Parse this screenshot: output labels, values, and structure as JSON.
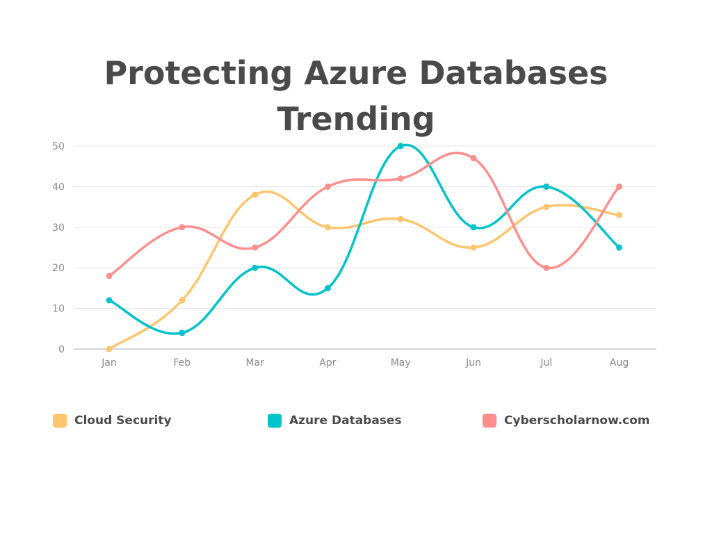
{
  "chart_data": {
    "type": "line",
    "title": "Protecting Azure Databases Trending",
    "title_lines": [
      "Protecting Azure Databases",
      "Trending"
    ],
    "categories": [
      "Jan",
      "Feb",
      "Mar",
      "Apr",
      "May",
      "Jun",
      "Jul",
      "Aug"
    ],
    "ylim": [
      0,
      50
    ],
    "yticks": [
      0,
      10,
      20,
      30,
      40,
      50
    ],
    "grid": true,
    "legend_position": "bottom",
    "series": [
      {
        "name": "Cloud Security",
        "color": "#ffc56e",
        "values": [
          0,
          12,
          38,
          30,
          32,
          25,
          35,
          33
        ]
      },
      {
        "name": "Azure Databases",
        "color": "#00c2c9",
        "values": [
          12,
          4,
          20,
          15,
          50,
          30,
          40,
          25
        ]
      },
      {
        "name": "Cyberscholarnow.com",
        "color": "#ff8f8f",
        "values": [
          18,
          30,
          25,
          40,
          42,
          47,
          20,
          40
        ]
      }
    ]
  }
}
